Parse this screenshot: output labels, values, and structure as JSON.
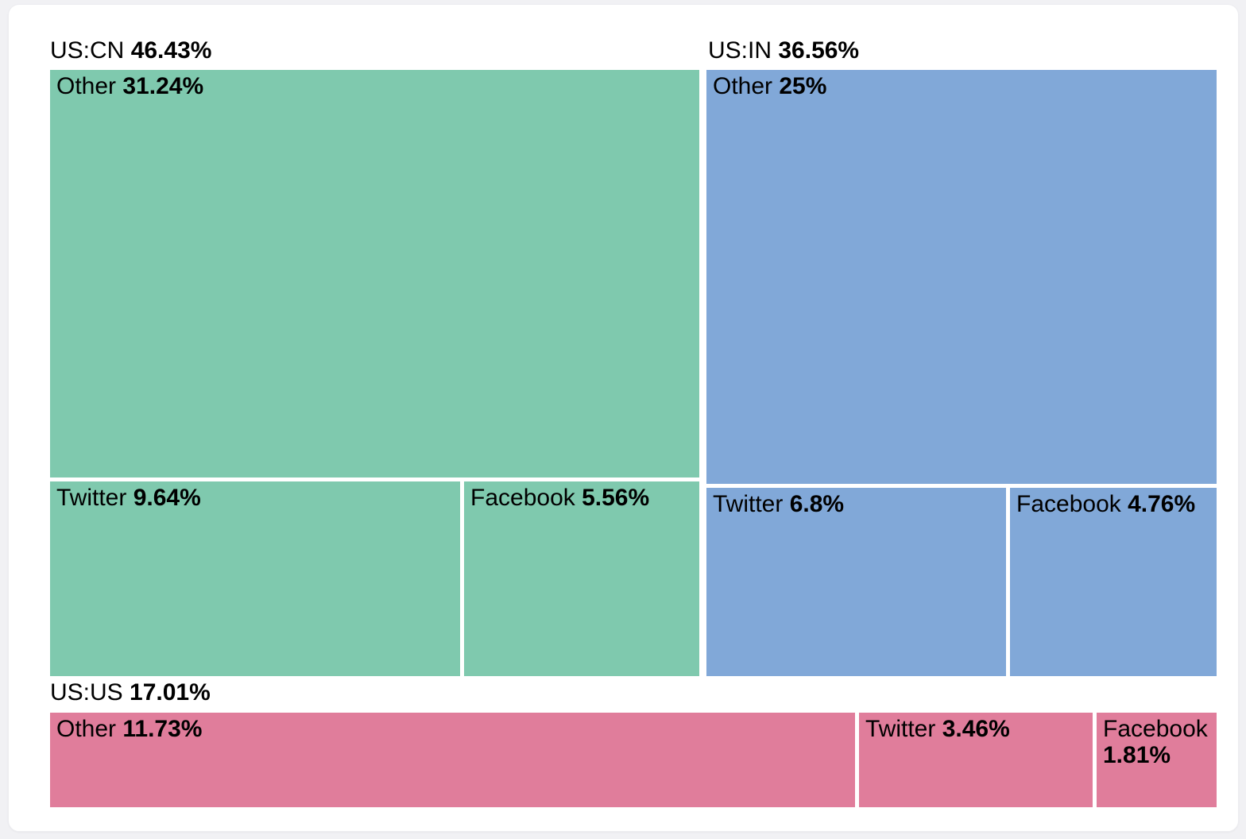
{
  "page": {
    "background_color": "#f1f1f4",
    "card_background_color": "#ffffff",
    "text_color": "#000000"
  },
  "chart_data": {
    "type": "treemap",
    "title": "",
    "legend_position": "none",
    "unit": "%",
    "groups": [
      {
        "label": "US:CN",
        "total_pct": "46.43%",
        "total_value": 46.43,
        "color": "#7FC9AE",
        "cells": [
          {
            "label": "Other",
            "pct": "31.24%",
            "value": 31.24
          },
          {
            "label": "Twitter",
            "pct": "9.64%",
            "value": 9.64
          },
          {
            "label": "Facebook",
            "pct": "5.56%",
            "value": 5.56
          }
        ]
      },
      {
        "label": "US:IN",
        "total_pct": "36.56%",
        "total_value": 36.56,
        "color": "#81A8D8",
        "cells": [
          {
            "label": "Other",
            "pct": "25%",
            "value": 25
          },
          {
            "label": "Twitter",
            "pct": "6.8%",
            "value": 6.8
          },
          {
            "label": "Facebook",
            "pct": "4.76%",
            "value": 4.76
          }
        ]
      },
      {
        "label": "US:US",
        "total_pct": "17.01%",
        "total_value": 17.01,
        "color": "#E07D9B",
        "cells": [
          {
            "label": "Other",
            "pct": "11.73%",
            "value": 11.73
          },
          {
            "label": "Twitter",
            "pct": "3.46%",
            "value": 3.46
          },
          {
            "label": "Facebook",
            "pct": "1.81%",
            "value": 1.81
          }
        ]
      }
    ]
  }
}
